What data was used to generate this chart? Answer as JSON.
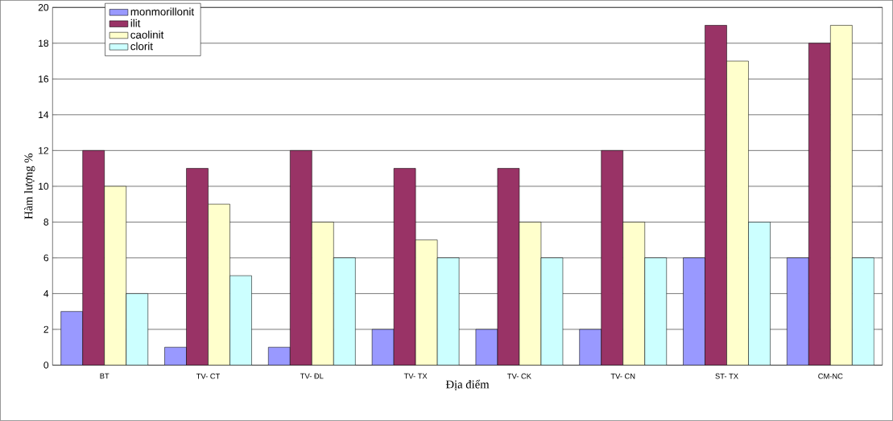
{
  "chart_data": {
    "type": "bar",
    "xlabel": "Địa điểm",
    "ylabel": "Hàm lượng %",
    "categories": [
      "BT",
      "TV- CT",
      "TV- ĐL",
      "TV- TX",
      "TV- CK",
      "TV- CN",
      "ST- TX",
      "CM-NC"
    ],
    "series": [
      {
        "name": "monmorillonit",
        "color": "#9999ff",
        "values": [
          3,
          1,
          1,
          2,
          2,
          2,
          6,
          6
        ]
      },
      {
        "name": "ilit",
        "color": "#993366",
        "values": [
          12,
          11,
          12,
          11,
          11,
          12,
          19,
          18
        ]
      },
      {
        "name": "caolinit",
        "color": "#ffffcc",
        "values": [
          10,
          9,
          8,
          7,
          8,
          8,
          17,
          19
        ]
      },
      {
        "name": "clorit",
        "color": "#ccffff",
        "values": [
          4,
          5,
          6,
          6,
          6,
          6,
          8,
          6
        ]
      }
    ],
    "ylim": [
      0,
      20
    ],
    "yticks": [
      0,
      2,
      4,
      6,
      8,
      10,
      12,
      14,
      16,
      18,
      20
    ],
    "grid": "y",
    "legend": "top left"
  }
}
